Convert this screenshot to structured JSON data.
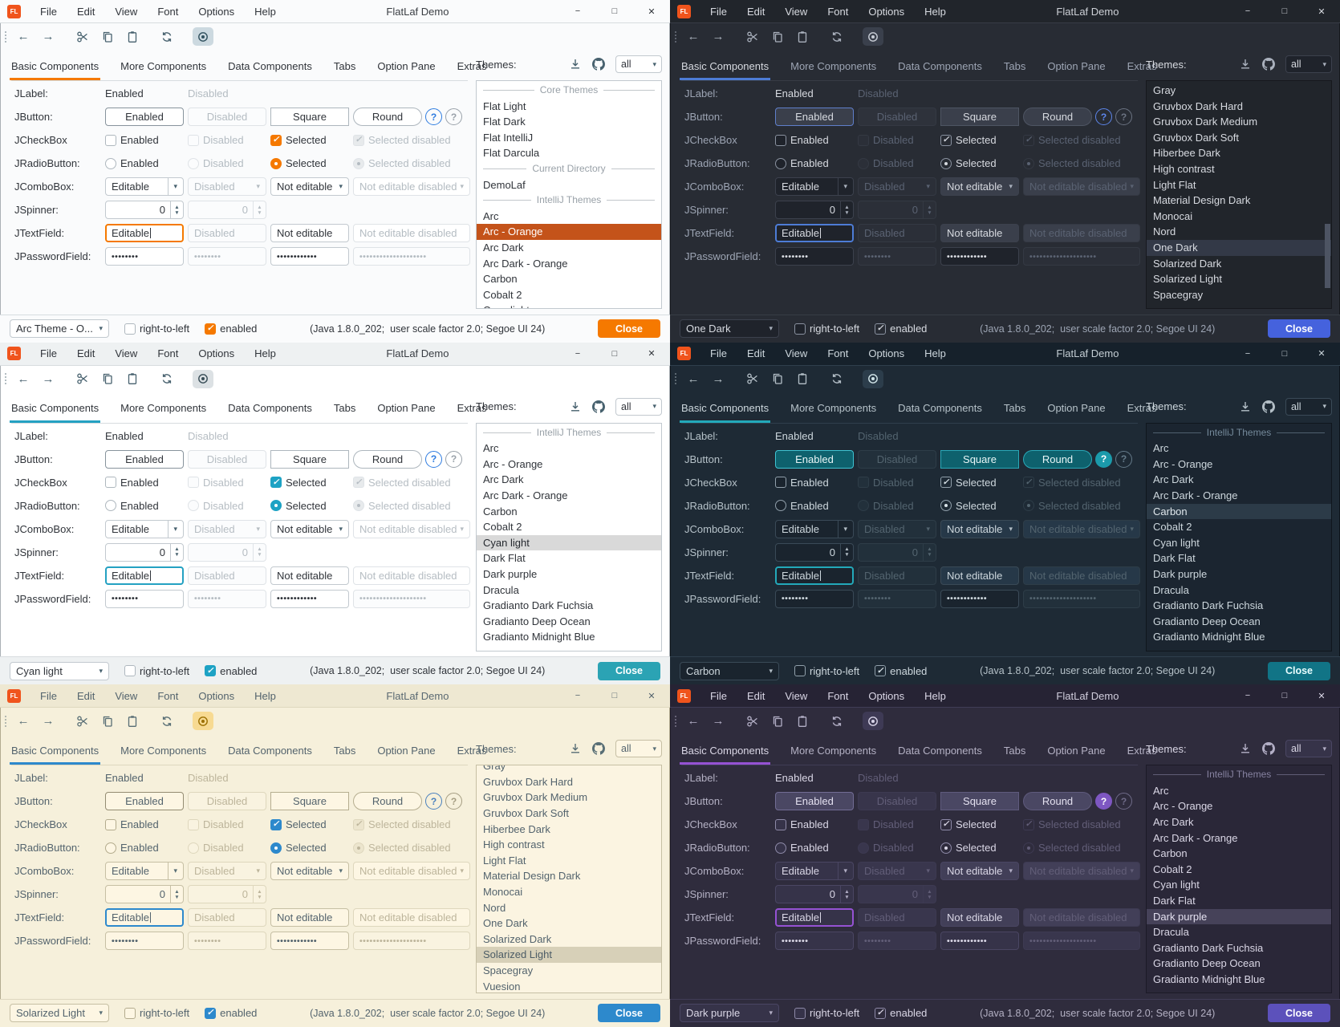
{
  "shared": {
    "logo": "FL",
    "title": "FlatLaf Demo",
    "menus": [
      "File",
      "Edit",
      "View",
      "Font",
      "Options",
      "Help"
    ],
    "window_controls": {
      "minimize": "−",
      "maximize": "□",
      "close": "✕"
    },
    "tabs": [
      "Basic Components",
      "More Components",
      "Data Components",
      "Tabs",
      "Option Pane",
      "Extras"
    ],
    "themes_label": "Themes:",
    "filter_value": "all",
    "icons": {
      "back": "←",
      "forward": "→",
      "combo_arrow": "▾",
      "spinner_up": "▲",
      "spinner_down": "▼"
    },
    "rows": {
      "jlabel": {
        "label": "JLabel:",
        "enabled": "Enabled",
        "disabled": "Disabled"
      },
      "jbutton": {
        "label": "JButton:",
        "b1": "Enabled",
        "b2": "Disabled",
        "b3": "Square",
        "b4": "Round",
        "help": "?"
      },
      "jcheckbox": {
        "label": "JCheckBox",
        "c1": "Enabled",
        "c2": "Disabled",
        "c3": "Selected",
        "c4": "Selected disabled"
      },
      "jradio": {
        "label": "JRadioButton:",
        "c1": "Enabled",
        "c2": "Disabled",
        "c3": "Selected",
        "c4": "Selected disabled"
      },
      "jcombo": {
        "label": "JComboBox:",
        "v1": "Editable",
        "v2": "Disabled",
        "v3": "Not editable",
        "v4": "Not editable disabled"
      },
      "jspinner": {
        "label": "JSpinner:",
        "v1": "0",
        "v2": "0"
      },
      "jtext": {
        "label": "JTextField:",
        "v1": "Editable",
        "v2": "Disabled",
        "v3": "Not editable",
        "v4": "Not editable disabled"
      },
      "jpassword": {
        "label": "JPasswordField:",
        "p1": "••••••••",
        "p2": "••••••••",
        "p3": "••••••••••••",
        "p4": "••••••••••••••••••••"
      }
    },
    "footer": {
      "rtl": "right-to-left",
      "enabled": "enabled",
      "status": "(Java 1.8.0_202;  user scale factor 2.0; Segoe UI 24)",
      "close": "Close"
    }
  },
  "windows": [
    {
      "theme": "Arc - Orange",
      "footer_combo": "Arc Theme - O...",
      "scrollbar": false,
      "list": [
        {
          "type": "header",
          "label": "Core Themes"
        },
        {
          "label": "Flat Light"
        },
        {
          "label": "Flat Dark"
        },
        {
          "label": "Flat IntelliJ"
        },
        {
          "label": "Flat Darcula"
        },
        {
          "type": "header",
          "label": "Current Directory"
        },
        {
          "label": "DemoLaf"
        },
        {
          "type": "header",
          "label": "IntelliJ Themes"
        },
        {
          "label": "Arc"
        },
        {
          "label": "Arc - Orange",
          "selected": true
        },
        {
          "label": "Arc Dark"
        },
        {
          "label": "Arc Dark - Orange"
        },
        {
          "label": "Carbon"
        },
        {
          "label": "Cobalt 2"
        },
        {
          "label": "Cyan light"
        }
      ],
      "colors": {
        "bg": "#fafbfc",
        "titlebar": "#fafbfc",
        "footerBg": "#fafbfc",
        "text": "#30343a",
        "label": "#30343a",
        "disabled": "#b4bcc2",
        "border": "#c2c9cf",
        "borderDis": "#dfe3e7",
        "field": "#ffffff",
        "fieldAlt": "#ffffff",
        "fieldDis": "#fbfcfd",
        "accent": "#f57900",
        "btnBg": "#ffffff",
        "btnBorder": "#adb6bd",
        "btnText": "#30343a",
        "defBorder": "#87939c",
        "btnDisBg": "#fbfcfd",
        "listBg": "#ffffff",
        "listBorder": "#c2c9cf",
        "selBg": "#c4531a",
        "selText": "#ffffff",
        "hdrColor": "#99a1a8",
        "icon": "#47616e",
        "eyeBg": "#ccd9e0",
        "eyeIcon": "#30505e",
        "closeBg": "#f57900",
        "closeText": "#ffffff",
        "checkFill": "#f57900",
        "checkOnBorder": "#f57900",
        "checkMark": "#ffffff",
        "checkBorder": "#aeb7be",
        "checkDisBg": "#e7eaec",
        "sep": "#d7dcdf",
        "winBorder": "#aab0b5",
        "helpBorder": "#2f7ce0",
        "helpFg": "#2f7ce0",
        "helpBg": "transparent",
        "help2": "#9aa2aa"
      }
    },
    {
      "theme": "One Dark",
      "footer_combo": "One Dark",
      "scrollbar": true,
      "list": [
        {
          "label": "Gray"
        },
        {
          "label": "Gruvbox Dark Hard"
        },
        {
          "label": "Gruvbox Dark Medium"
        },
        {
          "label": "Gruvbox Dark Soft"
        },
        {
          "label": "Hiberbee Dark"
        },
        {
          "label": "High contrast"
        },
        {
          "label": "Light Flat"
        },
        {
          "label": "Material Design Dark"
        },
        {
          "label": "Monocai"
        },
        {
          "label": "Nord"
        },
        {
          "label": "One Dark",
          "selected": true
        },
        {
          "label": "Solarized Dark"
        },
        {
          "label": "Solarized Light"
        },
        {
          "label": "Spacegray"
        }
      ],
      "colors": {
        "bg": "#282c34",
        "titlebar": "#21252b",
        "footerBg": "#282c34",
        "text": "#d7dae0",
        "label": "#9da5b4",
        "disabled": "#5a6272",
        "border": "#3c414d",
        "borderDis": "#343943",
        "field": "#1f232b",
        "fieldAlt": "#3a3f4b",
        "fieldDis": "#2b2f38",
        "accent": "#4d7cd6",
        "btnBg": "#3a3f4b",
        "btnBorder": "#4e5563",
        "btnText": "#d7dae0",
        "defBorder": "#5f7fcb",
        "btnDisBg": "#2e323b",
        "listBg": "#21252b",
        "listBorder": "#16181d",
        "selBg": "#333947",
        "selText": "#d7dae0",
        "hdrColor": "#7d8594",
        "icon": "#aab1bd",
        "eyeBg": "#3a404c",
        "eyeIcon": "#c8cdd6",
        "closeBg": "#4562dd",
        "closeText": "#ffffff",
        "checkFill": "transparent",
        "checkOnBorder": "#8a92a0",
        "checkMark": "#d7dae0",
        "checkBorder": "#8a92a0",
        "checkDisBg": "transparent",
        "sep": "#373c45",
        "winBorder": "#15181d",
        "helpBorder": "#5d86ec",
        "helpFg": "#5d86ec",
        "helpBg": "transparent",
        "help2": "#6b7382",
        "scrollThumb": "#4d5463"
      }
    },
    {
      "theme": "Cyan light",
      "footer_combo": "Cyan light",
      "scrollbar": false,
      "list": [
        {
          "type": "header",
          "label": "IntelliJ Themes"
        },
        {
          "label": "Arc"
        },
        {
          "label": "Arc - Orange"
        },
        {
          "label": "Arc Dark"
        },
        {
          "label": "Arc Dark - Orange"
        },
        {
          "label": "Carbon"
        },
        {
          "label": "Cobalt 2"
        },
        {
          "label": "Cyan light",
          "selected": true
        },
        {
          "label": "Dark Flat"
        },
        {
          "label": "Dark purple"
        },
        {
          "label": "Dracula"
        },
        {
          "label": "Gradianto Dark Fuchsia"
        },
        {
          "label": "Gradianto Deep Ocean"
        },
        {
          "label": "Gradianto Midnight Blue"
        }
      ],
      "colors": {
        "bg": "#ffffff",
        "titlebar": "#eef1f2",
        "footerBg": "#eef1f2",
        "text": "#30343a",
        "label": "#30343a",
        "disabled": "#b6bdc3",
        "border": "#c2c9cf",
        "borderDis": "#dfe3e7",
        "field": "#ffffff",
        "fieldAlt": "#ffffff",
        "fieldDis": "#fbfcfd",
        "accent": "#24a1c2",
        "btnBg": "#ffffff",
        "btnBorder": "#adb6bd",
        "btnText": "#30343a",
        "defBorder": "#87939c",
        "btnDisBg": "#fbfcfd",
        "listBg": "#ffffff",
        "listBorder": "#c2c9cf",
        "selBg": "#d9d9d9",
        "selText": "#24282e",
        "hdrColor": "#99a1a8",
        "icon": "#47616e",
        "eyeBg": "#dce1e4",
        "eyeIcon": "#374c56",
        "closeBg": "#2ba3b4",
        "closeText": "#ffffff",
        "checkFill": "#1da2c4",
        "checkOnBorder": "#1da2c4",
        "checkMark": "#ffffff",
        "checkBorder": "#aeb7be",
        "checkDisBg": "#e7eaec",
        "sep": "#d7dcdf",
        "winBorder": "#aab0b5",
        "helpBorder": "#2f7ce0",
        "helpFg": "#2f7ce0",
        "helpBg": "transparent",
        "help2": "#9aa2aa"
      }
    },
    {
      "theme": "Carbon",
      "footer_combo": "Carbon",
      "scrollbar": false,
      "list": [
        {
          "type": "header",
          "label": "IntelliJ Themes"
        },
        {
          "label": "Arc"
        },
        {
          "label": "Arc - Orange"
        },
        {
          "label": "Arc Dark"
        },
        {
          "label": "Arc Dark - Orange"
        },
        {
          "label": "Carbon",
          "selected": true
        },
        {
          "label": "Cobalt 2"
        },
        {
          "label": "Cyan light"
        },
        {
          "label": "Dark Flat"
        },
        {
          "label": "Dark purple"
        },
        {
          "label": "Dracula"
        },
        {
          "label": "Gradianto Dark Fuchsia"
        },
        {
          "label": "Gradianto Deep Ocean"
        },
        {
          "label": "Gradianto Midnight Blue"
        }
      ],
      "colors": {
        "bg": "#1e2a35",
        "titlebar": "#16212b",
        "footerBg": "#1e2a35",
        "text": "#cdd7dd",
        "label": "#b6c2c9",
        "disabled": "#53646f",
        "border": "#3a4a57",
        "borderDis": "#2e3d48",
        "field": "#1a242e",
        "fieldAlt": "#263848",
        "fieldDis": "#22303b",
        "accent": "#23a9ba",
        "btnBg": "#0e616d",
        "btnBorder": "#2aa9b8",
        "btnText": "#e9f6f7",
        "defBorder": "#3fc4d3",
        "btnDisBg": "#22303b",
        "listBg": "#1b2530",
        "listBorder": "#0f161d",
        "selBg": "#2c3b48",
        "selText": "#e0e8ed",
        "hdrColor": "#74899a",
        "icon": "#b4bfc7",
        "eyeBg": "#2c3d4b",
        "eyeIcon": "#d3e6ea",
        "closeBg": "#117486",
        "closeText": "#e9feff",
        "checkFill": "transparent",
        "checkOnBorder": "#91a0ab",
        "checkMark": "#dbe5ea",
        "checkBorder": "#91a0ab",
        "checkDisBg": "transparent",
        "sep": "#2f3f4c",
        "winBorder": "#0d141b",
        "helpBorder": "#1b9aab",
        "helpFg": "#ffffff",
        "helpBg": "#1b9aab",
        "help2": "#647a89"
      }
    },
    {
      "theme": "Solarized Light",
      "footer_combo": "Solarized Light",
      "scrollbar": false,
      "list": [
        {
          "label": "Gray",
          "clip": true
        },
        {
          "label": "Gruvbox Dark Hard"
        },
        {
          "label": "Gruvbox Dark Medium"
        },
        {
          "label": "Gruvbox Dark Soft"
        },
        {
          "label": "Hiberbee Dark"
        },
        {
          "label": "High contrast"
        },
        {
          "label": "Light Flat"
        },
        {
          "label": "Material Design Dark"
        },
        {
          "label": "Monocai"
        },
        {
          "label": "Nord"
        },
        {
          "label": "One Dark"
        },
        {
          "label": "Solarized Dark"
        },
        {
          "label": "Solarized Light",
          "selected": true
        },
        {
          "label": "Spacegray"
        },
        {
          "label": "Vuesion"
        }
      ],
      "colors": {
        "bg": "#f6f0db",
        "titlebar": "#eee8d2",
        "footerBg": "#f6f0db",
        "text": "#53636d",
        "label": "#53636d",
        "disabled": "#bdb59b",
        "border": "#c6bfa4",
        "borderDis": "#ded7bd",
        "field": "#fdf6e3",
        "fieldAlt": "#fdf6e3",
        "fieldDis": "#f9f3e0",
        "accent": "#2d89cc",
        "btnBg": "#fdf6e3",
        "btnBorder": "#b6ae90",
        "btnText": "#53636d",
        "defBorder": "#948c72",
        "btnDisBg": "#f9f3e0",
        "listBg": "#fbf4e1",
        "listBorder": "#c6bfa4",
        "selBg": "#d7d0b8",
        "selText": "#4c5c66",
        "hdrColor": "#a59d82",
        "icon": "#586e75",
        "eyeBg": "#f7da92",
        "eyeIcon": "#9b6f00",
        "closeBg": "#2d89cc",
        "closeText": "#ffffff",
        "checkFill": "#2d89cc",
        "checkOnBorder": "#2d89cc",
        "checkMark": "#ffffff",
        "checkBorder": "#b3ab8d",
        "checkDisBg": "#ece5cd",
        "sep": "#ded7bf",
        "winBorder": "#b3ab90",
        "helpBorder": "#4a80bd",
        "helpFg": "#4a80bd",
        "helpBg": "transparent",
        "help2": "#a59d82"
      }
    },
    {
      "theme": "Dark purple",
      "footer_combo": "Dark purple",
      "scrollbar": false,
      "list": [
        {
          "type": "header",
          "label": "IntelliJ Themes"
        },
        {
          "label": "Arc"
        },
        {
          "label": "Arc - Orange"
        },
        {
          "label": "Arc Dark"
        },
        {
          "label": "Arc Dark - Orange"
        },
        {
          "label": "Carbon"
        },
        {
          "label": "Cobalt 2"
        },
        {
          "label": "Cyan light"
        },
        {
          "label": "Dark Flat"
        },
        {
          "label": "Dark purple",
          "selected": true
        },
        {
          "label": "Dracula"
        },
        {
          "label": "Gradianto Dark Fuchsia"
        },
        {
          "label": "Gradianto Deep Ocean"
        },
        {
          "label": "Gradianto Midnight Blue"
        }
      ],
      "colors": {
        "bg": "#2f2c3d",
        "titlebar": "#262334",
        "footerBg": "#2f2c3d",
        "text": "#dad7e6",
        "label": "#b4b1c4",
        "disabled": "#625e78",
        "border": "#4a4663",
        "borderDis": "#3d3a52",
        "field": "#363349",
        "fieldAlt": "#423f58",
        "fieldDis": "#39364d",
        "accent": "#9552d3",
        "btnBg": "#4a4763",
        "btnBorder": "#5f5b7d",
        "btnText": "#e4e1f0",
        "defBorder": "#726d95",
        "btnDisBg": "#38354b",
        "listBg": "#2a2738",
        "listBorder": "#1c1a27",
        "selBg": "#464259",
        "selText": "#e4e1f0",
        "hdrColor": "#8682a0",
        "icon": "#b3afc6",
        "eyeBg": "#3e3a55",
        "eyeIcon": "#d8d4e8",
        "closeBg": "#5c51bb",
        "closeText": "#ffffff",
        "checkFill": "transparent",
        "checkOnBorder": "#8e8aa8",
        "checkMark": "#dad7e6",
        "checkBorder": "#8e8aa8",
        "checkDisBg": "transparent",
        "sep": "#403c56",
        "winBorder": "#1a1826",
        "helpBorder": "#7e57c2",
        "helpFg": "#ffffff",
        "helpBg": "#7e57c2",
        "help2": "#6f6b88"
      }
    }
  ]
}
